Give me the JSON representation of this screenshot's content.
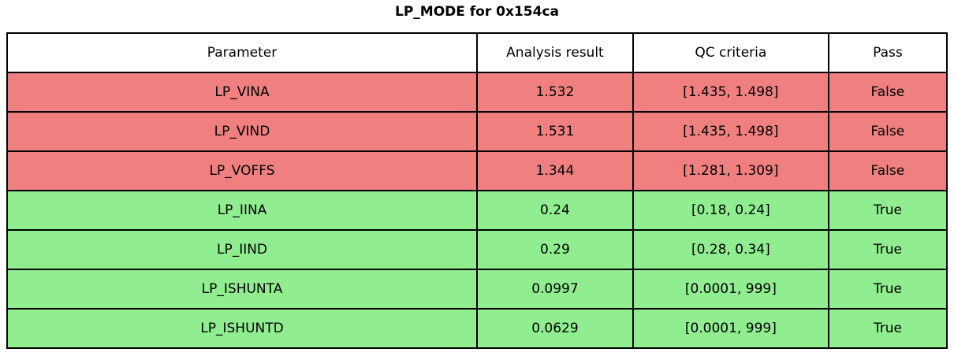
{
  "title": "LP_MODE for 0x154ca",
  "colors": {
    "fail_row_bg": "#f08080",
    "pass_row_bg": "#90ee90",
    "header_bg": "#ffffff",
    "border": "#000000",
    "text": "#000000"
  },
  "chart_data": {
    "type": "table",
    "title": "LP_MODE for 0x154ca",
    "columns": [
      "Parameter",
      "Analysis result",
      "QC criteria",
      "Pass"
    ],
    "rows": [
      {
        "parameter": "LP_VINA",
        "result": "1.532",
        "qc": "[1.435, 1.498]",
        "pass": "False",
        "status": "fail"
      },
      {
        "parameter": "LP_VIND",
        "result": "1.531",
        "qc": "[1.435, 1.498]",
        "pass": "False",
        "status": "fail"
      },
      {
        "parameter": "LP_VOFFS",
        "result": "1.344",
        "qc": "[1.281, 1.309]",
        "pass": "False",
        "status": "fail"
      },
      {
        "parameter": "LP_IINA",
        "result": "0.24",
        "qc": "[0.18, 0.24]",
        "pass": "True",
        "status": "pass"
      },
      {
        "parameter": "LP_IIND",
        "result": "0.29",
        "qc": "[0.28, 0.34]",
        "pass": "True",
        "status": "pass"
      },
      {
        "parameter": "LP_ISHUNTA",
        "result": "0.0997",
        "qc": "[0.0001, 999]",
        "pass": "True",
        "status": "pass"
      },
      {
        "parameter": "LP_ISHUNTD",
        "result": "0.0629",
        "qc": "[0.0001, 999]",
        "pass": "True",
        "status": "pass"
      }
    ]
  }
}
